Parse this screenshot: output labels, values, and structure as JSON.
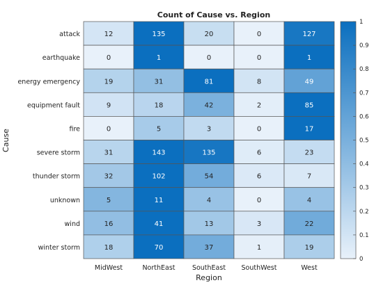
{
  "chart_data": {
    "type": "heatmap",
    "title": "Count of Cause vs. Region",
    "xlabel": "Region",
    "ylabel": "Cause",
    "x_categories": [
      "MidWest",
      "NorthEast",
      "SouthEast",
      "SouthWest",
      "West"
    ],
    "y_categories": [
      "attack",
      "earthquake",
      "energy emergency",
      "equipment fault",
      "fire",
      "severe storm",
      "thunder storm",
      "unknown",
      "wind",
      "winter storm"
    ],
    "values": [
      [
        12,
        135,
        20,
        0,
        127
      ],
      [
        0,
        1,
        0,
        0,
        1
      ],
      [
        19,
        31,
        81,
        8,
        49
      ],
      [
        9,
        18,
        42,
        2,
        85
      ],
      [
        0,
        5,
        3,
        0,
        17
      ],
      [
        31,
        143,
        135,
        6,
        23
      ],
      [
        32,
        102,
        54,
        6,
        7
      ],
      [
        5,
        11,
        4,
        0,
        4
      ],
      [
        16,
        41,
        13,
        3,
        22
      ],
      [
        18,
        70,
        37,
        1,
        19
      ]
    ],
    "color_scale": {
      "range": [
        0,
        1
      ],
      "ticks": [
        "0",
        "0.1",
        "0.2",
        "0.3",
        "0.4",
        "0.5",
        "0.6",
        "0.7",
        "0.8",
        "0.9",
        "1"
      ],
      "low_color": "#e8f1fa",
      "high_color": "#0b6fbf"
    },
    "grid": true,
    "colorbar": "right"
  }
}
